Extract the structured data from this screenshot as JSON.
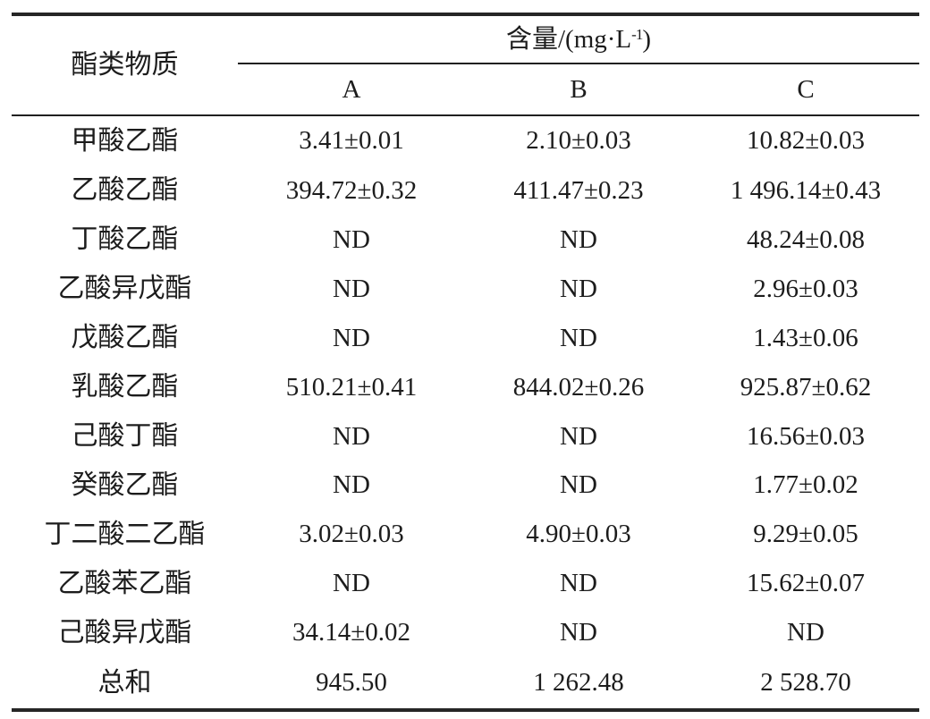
{
  "table": {
    "header": {
      "row_label": "酯类物质",
      "unit_prefix": "含量/(mg·L",
      "unit_sup": "-1",
      "unit_suffix": ")",
      "columns": [
        "A",
        "B",
        "C"
      ]
    },
    "rows": [
      {
        "substance": "甲酸乙酯",
        "A": "3.41±0.01",
        "B": "2.10±0.03",
        "C": "10.82±0.03"
      },
      {
        "substance": "乙酸乙酯",
        "A": "394.72±0.32",
        "B": "411.47±0.23",
        "C": "1 496.14±0.43"
      },
      {
        "substance": "丁酸乙酯",
        "A": "ND",
        "B": "ND",
        "C": "48.24±0.08"
      },
      {
        "substance": "乙酸异戊酯",
        "A": "ND",
        "B": "ND",
        "C": "2.96±0.03"
      },
      {
        "substance": "戊酸乙酯",
        "A": "ND",
        "B": "ND",
        "C": "1.43±0.06"
      },
      {
        "substance": "乳酸乙酯",
        "A": "510.21±0.41",
        "B": "844.02±0.26",
        "C": "925.87±0.62"
      },
      {
        "substance": "己酸丁酯",
        "A": "ND",
        "B": "ND",
        "C": "16.56±0.03"
      },
      {
        "substance": "癸酸乙酯",
        "A": "ND",
        "B": "ND",
        "C": "1.77±0.02"
      },
      {
        "substance": "丁二酸二乙酯",
        "A": "3.02±0.03",
        "B": "4.90±0.03",
        "C": "9.29±0.05"
      },
      {
        "substance": "乙酸苯乙酯",
        "A": "ND",
        "B": "ND",
        "C": "15.62±0.07"
      },
      {
        "substance": "己酸异戊酯",
        "A": "34.14±0.02",
        "B": "ND",
        "C": "ND"
      },
      {
        "substance": "总和",
        "A": "945.50",
        "B": "1 262.48",
        "C": "2 528.70"
      }
    ]
  },
  "colors": {
    "text": "#1c1c1c",
    "rule_thick": "#262626",
    "rule_thin": "#202020",
    "background": "#ffffff"
  }
}
